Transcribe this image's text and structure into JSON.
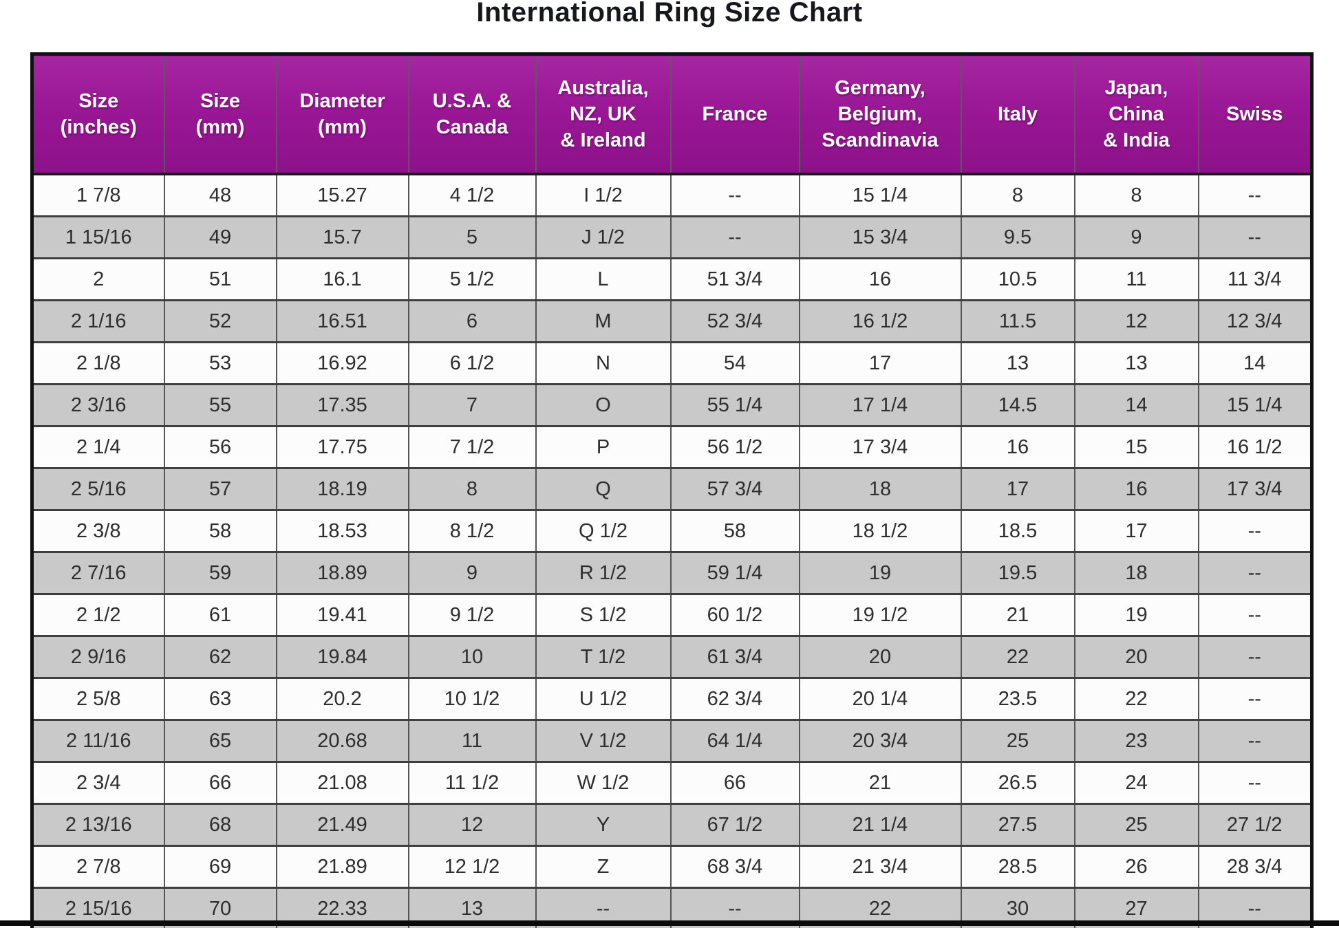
{
  "page": {
    "title": "International Ring Size Chart"
  },
  "colors": {
    "header_bg": "#9C1C97",
    "header_text": "#FFFFFF",
    "row_bg": "#FCFCFC",
    "row_alt_bg": "#C9C9C9",
    "border": "#3F3F3F",
    "outer_border": "#121212",
    "title_text": "#17171F"
  },
  "chart_data": {
    "type": "table",
    "title": "International Ring Size Chart",
    "headers": [
      "Size\n(inches)",
      "Size\n(mm)",
      "Diameter\n(mm)",
      "U.S.A. &\nCanada",
      "Australia,\nNZ, UK\n& Ireland",
      "France",
      "Germany,\nBelgium,\nScandinavia",
      "Italy",
      "Japan,\nChina\n& India",
      "Swiss"
    ],
    "rows": [
      [
        "1 7/8",
        "48",
        "15.27",
        "4 1/2",
        "I 1/2",
        "--",
        "15 1/4",
        "8",
        "8",
        "--"
      ],
      [
        "1 15/16",
        "49",
        "15.7",
        "5",
        "J 1/2",
        "--",
        "15 3/4",
        "9.5",
        "9",
        "--"
      ],
      [
        "2",
        "51",
        "16.1",
        "5 1/2",
        "L",
        "51 3/4",
        "16",
        "10.5",
        "11",
        "11 3/4"
      ],
      [
        "2 1/16",
        "52",
        "16.51",
        "6",
        "M",
        "52 3/4",
        "16 1/2",
        "11.5",
        "12",
        "12 3/4"
      ],
      [
        "2 1/8",
        "53",
        "16.92",
        "6 1/2",
        "N",
        "54",
        "17",
        "13",
        "13",
        "14"
      ],
      [
        "2 3/16",
        "55",
        "17.35",
        "7",
        "O",
        "55 1/4",
        "17 1/4",
        "14.5",
        "14",
        "15 1/4"
      ],
      [
        "2 1/4",
        "56",
        "17.75",
        "7 1/2",
        "P",
        "56 1/2",
        "17 3/4",
        "16",
        "15",
        "16 1/2"
      ],
      [
        "2 5/16",
        "57",
        "18.19",
        "8",
        "Q",
        "57 3/4",
        "18",
        "17",
        "16",
        "17 3/4"
      ],
      [
        "2 3/8",
        "58",
        "18.53",
        "8 1/2",
        "Q 1/2",
        "58",
        "18 1/2",
        "18.5",
        "17",
        "--"
      ],
      [
        "2 7/16",
        "59",
        "18.89",
        "9",
        "R 1/2",
        "59 1/4",
        "19",
        "19.5",
        "18",
        "--"
      ],
      [
        "2 1/2",
        "61",
        "19.41",
        "9 1/2",
        "S 1/2",
        "60 1/2",
        "19 1/2",
        "21",
        "19",
        "--"
      ],
      [
        "2 9/16",
        "62",
        "19.84",
        "10",
        "T 1/2",
        "61 3/4",
        "20",
        "22",
        "20",
        "--"
      ],
      [
        "2 5/8",
        "63",
        "20.2",
        "10 1/2",
        "U 1/2",
        "62 3/4",
        "20 1/4",
        "23.5",
        "22",
        "--"
      ],
      [
        "2 11/16",
        "65",
        "20.68",
        "11",
        "V 1/2",
        "64 1/4",
        "20 3/4",
        "25",
        "23",
        "--"
      ],
      [
        "2 3/4",
        "66",
        "21.08",
        "11 1/2",
        "W 1/2",
        "66",
        "21",
        "26.5",
        "24",
        "--"
      ],
      [
        "2 13/16",
        "68",
        "21.49",
        "12",
        "Y",
        "67 1/2",
        "21 1/4",
        "27.5",
        "25",
        "27 1/2"
      ],
      [
        "2 7/8",
        "69",
        "21.89",
        "12 1/2",
        "Z",
        "68 3/4",
        "21 3/4",
        "28.5",
        "26",
        "28 3/4"
      ],
      [
        "2 15/16",
        "70",
        "22.33",
        "13",
        "--",
        "--",
        "22",
        "30",
        "27",
        "--"
      ]
    ],
    "layout": {
      "grid": true,
      "alternating_row_shading": true,
      "first_data_row_shading": "white"
    }
  }
}
